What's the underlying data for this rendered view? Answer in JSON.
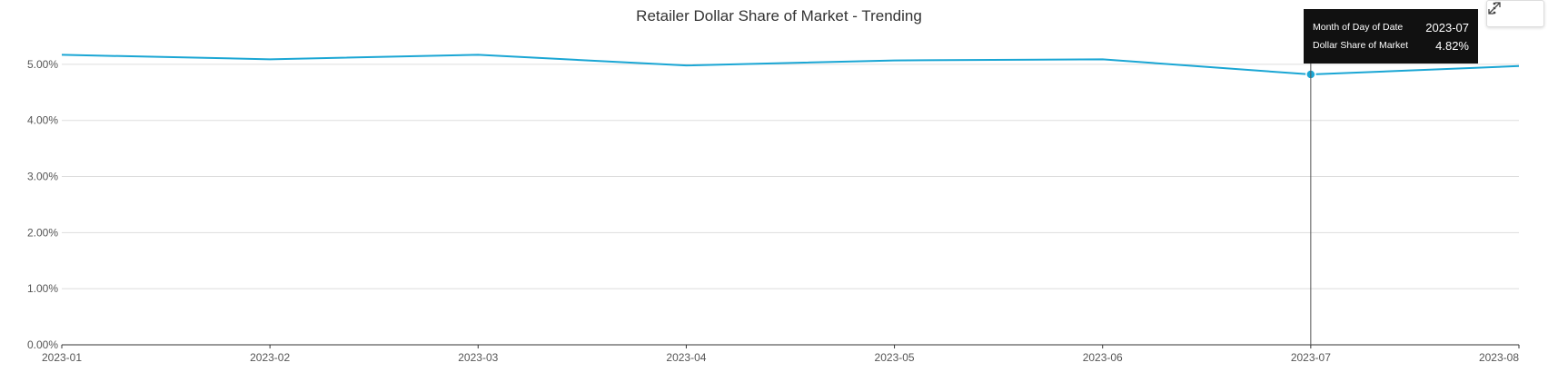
{
  "chart_data": {
    "type": "line",
    "title": "Retailer Dollar Share of Market - Trending",
    "categories": [
      "2023-01",
      "2023-02",
      "2023-03",
      "2023-04",
      "2023-05",
      "2023-06",
      "2023-07",
      "2023-08"
    ],
    "series": [
      {
        "values": [
          5.17,
          5.09,
          5.17,
          4.98,
          5.07,
          5.09,
          4.82,
          4.97
        ]
      }
    ],
    "ylim": [
      0,
      5.5
    ],
    "yticks": [
      "0.00%",
      "1.00%",
      "2.00%",
      "3.00%",
      "4.00%",
      "5.00%"
    ],
    "grid": true,
    "line_color": "#1aa6d4",
    "highlight_index": 6
  },
  "tooltip": {
    "row1_key": "Month of Day of Date",
    "row1_value": "2023-07",
    "row2_key": "Dollar Share of Market",
    "row2_value": "4.82%"
  },
  "toolbar": {
    "expand_icon": "expand-icon",
    "menu_icon": "more-vertical-icon"
  }
}
